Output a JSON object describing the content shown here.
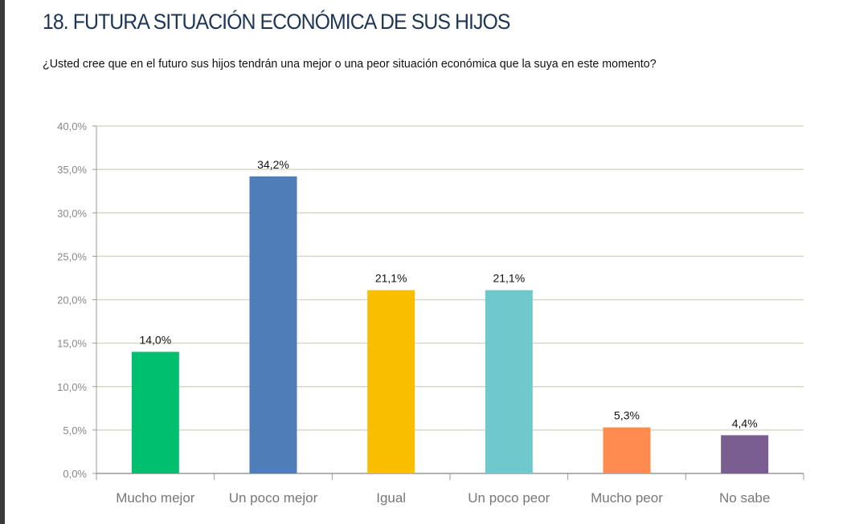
{
  "title": "18. FUTURA SITUACIÓN ECONÓMICA DE SUS HIJOS",
  "subtitle": "¿Usted cree que en el futuro sus hijos tendrán una mejor o una peor situación económica que la suya en este momento?",
  "chart_data": {
    "type": "bar",
    "categories": [
      "Mucho mejor",
      "Un poco mejor",
      "Igual",
      "Un poco peor",
      "Mucho peor",
      "No sabe"
    ],
    "values": [
      14.0,
      34.2,
      21.1,
      21.1,
      5.3,
      4.4
    ],
    "data_labels": [
      "14,0%",
      "34,2%",
      "21,1%",
      "21,1%",
      "5,3%",
      "4,4%"
    ],
    "colors": [
      "#00bf6f",
      "#4f7db8",
      "#f9be00",
      "#6ec8cc",
      "#ff8c4e",
      "#7b5e91"
    ],
    "ylim": [
      0,
      40
    ],
    "yticks": [
      "0,0%",
      "5,0%",
      "10,0%",
      "15,0%",
      "20,0%",
      "25,0%",
      "30,0%",
      "35,0%",
      "40,0%"
    ],
    "grid": true,
    "legend": "none"
  }
}
